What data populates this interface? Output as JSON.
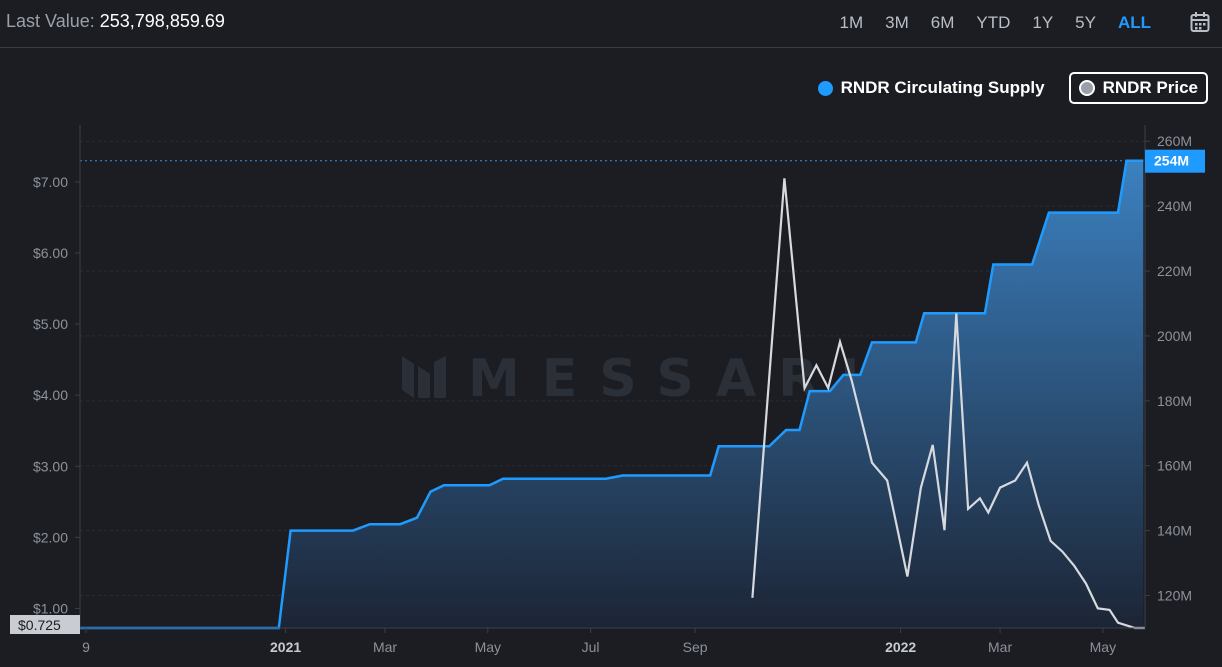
{
  "header": {
    "last_value_label": "Last Value:",
    "last_value": "253,798,859.69",
    "ranges": [
      "1M",
      "3M",
      "6M",
      "YTD",
      "1Y",
      "5Y",
      "ALL"
    ],
    "active_range": "ALL"
  },
  "watermark": "MESSARI",
  "colors": {
    "supply": "#1f9bff",
    "price": "#d6d9de",
    "background": "#1b1d22",
    "active": "#1f9bff"
  },
  "chart_data": {
    "type": "line",
    "x_tick_labels": [
      "9",
      "2021",
      "Mar",
      "May",
      "Jul",
      "Sep",
      "2022",
      "Mar",
      "May"
    ],
    "bold_x_ticks": [
      "2021",
      "2022"
    ],
    "left_axis": {
      "ticks": [
        "$1.00",
        "$2.00",
        "$3.00",
        "$4.00",
        "$5.00",
        "$6.00",
        "$7.00"
      ],
      "ylim": [
        0.725,
        7.8
      ],
      "current_label": "$0.725"
    },
    "right_axis": {
      "ticks": [
        "120M",
        "140M",
        "160M",
        "180M",
        "200M",
        "220M",
        "240M",
        "260M"
      ],
      "ylim": [
        110,
        265
      ],
      "current_label": "254M"
    },
    "legend": [
      {
        "name": "RNDR Circulating Supply",
        "color": "#1f9bff",
        "boxed": false
      },
      {
        "name": "RNDR Price",
        "color": "#9aa0aa",
        "boxed": true
      }
    ],
    "series": [
      {
        "name": "RNDR Circulating Supply",
        "axis": "right",
        "style": "area",
        "x": [
          "2020-09-01",
          "2020-10-01",
          "2020-11-01",
          "2020-12-01",
          "2020-12-28",
          "2021-01-04",
          "2021-01-20",
          "2021-02-10",
          "2021-02-20",
          "2021-03-01",
          "2021-03-10",
          "2021-03-20",
          "2021-03-28",
          "2021-04-05",
          "2021-04-15",
          "2021-04-25",
          "2021-05-02",
          "2021-05-10",
          "2021-05-20",
          "2021-06-10",
          "2021-07-10",
          "2021-07-20",
          "2021-08-01",
          "2021-08-20",
          "2021-09-10",
          "2021-09-15",
          "2021-10-15",
          "2021-10-25",
          "2021-11-02",
          "2021-11-08",
          "2021-11-20",
          "2021-11-28",
          "2021-12-08",
          "2021-12-15",
          "2021-12-25",
          "2022-01-10",
          "2022-01-15",
          "2022-02-20",
          "2022-02-25",
          "2022-03-20",
          "2022-03-30",
          "2022-04-25",
          "2022-05-10",
          "2022-05-15",
          "2022-05-25"
        ],
        "y": [
          110,
          110,
          110,
          110,
          110,
          140,
          140,
          140,
          142,
          142,
          142,
          144,
          152,
          154,
          154,
          154,
          154,
          156,
          156,
          156,
          156,
          157,
          157,
          157,
          157,
          166,
          166,
          171,
          171,
          183,
          183,
          188,
          188,
          198,
          198,
          198,
          207,
          207,
          222,
          222,
          238,
          238,
          238,
          254,
          254
        ]
      },
      {
        "name": "RNDR Price",
        "axis": "left",
        "style": "line",
        "x": [
          "2021-10-05",
          "2021-10-24",
          "2021-11-05",
          "2021-11-12",
          "2021-11-19",
          "2021-11-26",
          "2021-12-03",
          "2021-12-15",
          "2021-12-24",
          "2022-01-05",
          "2022-01-13",
          "2022-01-20",
          "2022-01-27",
          "2022-02-03",
          "2022-02-10",
          "2022-02-17",
          "2022-02-22",
          "2022-03-01",
          "2022-03-10",
          "2022-03-17",
          "2022-03-24",
          "2022-03-31",
          "2022-04-07",
          "2022-04-14",
          "2022-04-21",
          "2022-04-28",
          "2022-05-05",
          "2022-05-10",
          "2022-05-20",
          "2022-05-26"
        ],
        "y": [
          1.15,
          7.05,
          4.1,
          4.42,
          4.1,
          4.75,
          4.2,
          3.05,
          2.8,
          1.45,
          2.7,
          3.3,
          2.1,
          5.15,
          2.4,
          2.55,
          2.35,
          2.7,
          2.8,
          3.05,
          2.45,
          1.95,
          1.8,
          1.6,
          1.35,
          1.0,
          0.98,
          0.8,
          0.725,
          0.725
        ]
      }
    ]
  }
}
